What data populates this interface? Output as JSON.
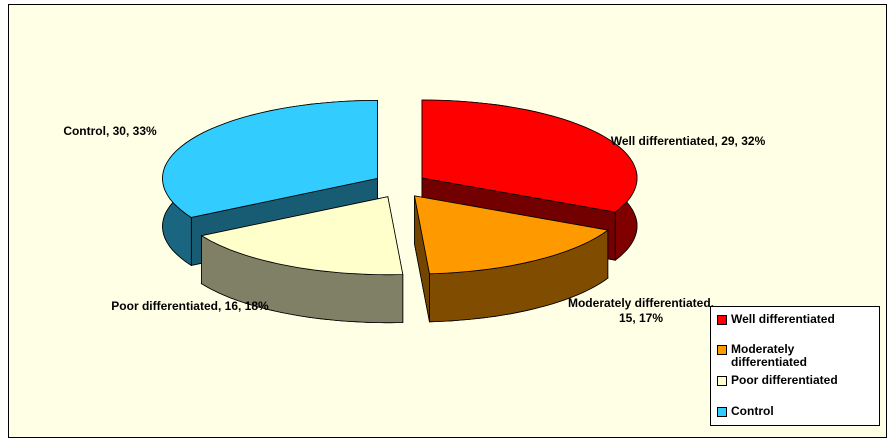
{
  "chart_data": {
    "type": "pie",
    "categories": [
      "Well differentiated",
      "Moderately differentiated",
      "Poor differentiated",
      "Control"
    ],
    "values": [
      29,
      15,
      16,
      30
    ],
    "value_labels": [
      "Well differentiated, 29, 32%",
      "Moderately differentiated, 15, 17%",
      "Poor differentiated, 16, 18%",
      "Control, 30, 33%"
    ],
    "colors": [
      "#ff0000",
      "#ff9900",
      "#ffffcc",
      "#33ccff"
    ],
    "legend": "bottom-right"
  }
}
